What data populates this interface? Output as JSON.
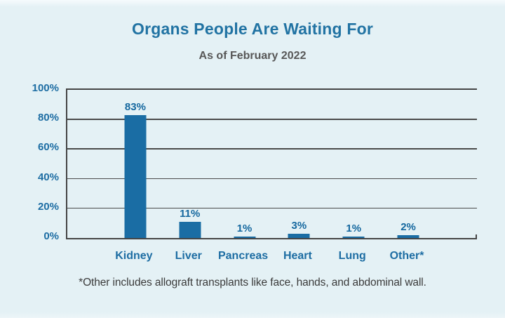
{
  "chart": {
    "title": "Organs People Are Waiting For",
    "subtitle": "As of February 2022",
    "footnote": "*Other includes allograft transplants like face, hands, and abdominal wall."
  },
  "chart_data": {
    "type": "bar",
    "title": "Organs People Are Waiting For",
    "subtitle": "As of February 2022",
    "categories": [
      "Kidney",
      "Liver",
      "Pancreas",
      "Heart",
      "Lung",
      "Other*"
    ],
    "values": [
      83,
      11,
      1,
      3,
      1,
      2
    ],
    "value_labels": [
      "83%",
      "11%",
      "1%",
      "3%",
      "1%",
      "2%"
    ],
    "yticks": [
      "100%",
      "80%",
      "60%",
      "40%",
      "20%",
      "0%"
    ],
    "ylabel": "",
    "xlabel": "",
    "ylim": [
      0,
      100
    ],
    "grid": true,
    "legend_position": "none",
    "footnote": "*Other includes allograft transplants like face, hands, and abdominal wall.",
    "colors": {
      "bar": "#1a6da4",
      "title": "#2173a3",
      "axis_label": "#1d6da3",
      "value_label": "#15689f",
      "subtitle": "#575757",
      "footnote": "#3a3a3a",
      "background": "#e4f1f5",
      "gridline": "#4a4a4a"
    }
  }
}
